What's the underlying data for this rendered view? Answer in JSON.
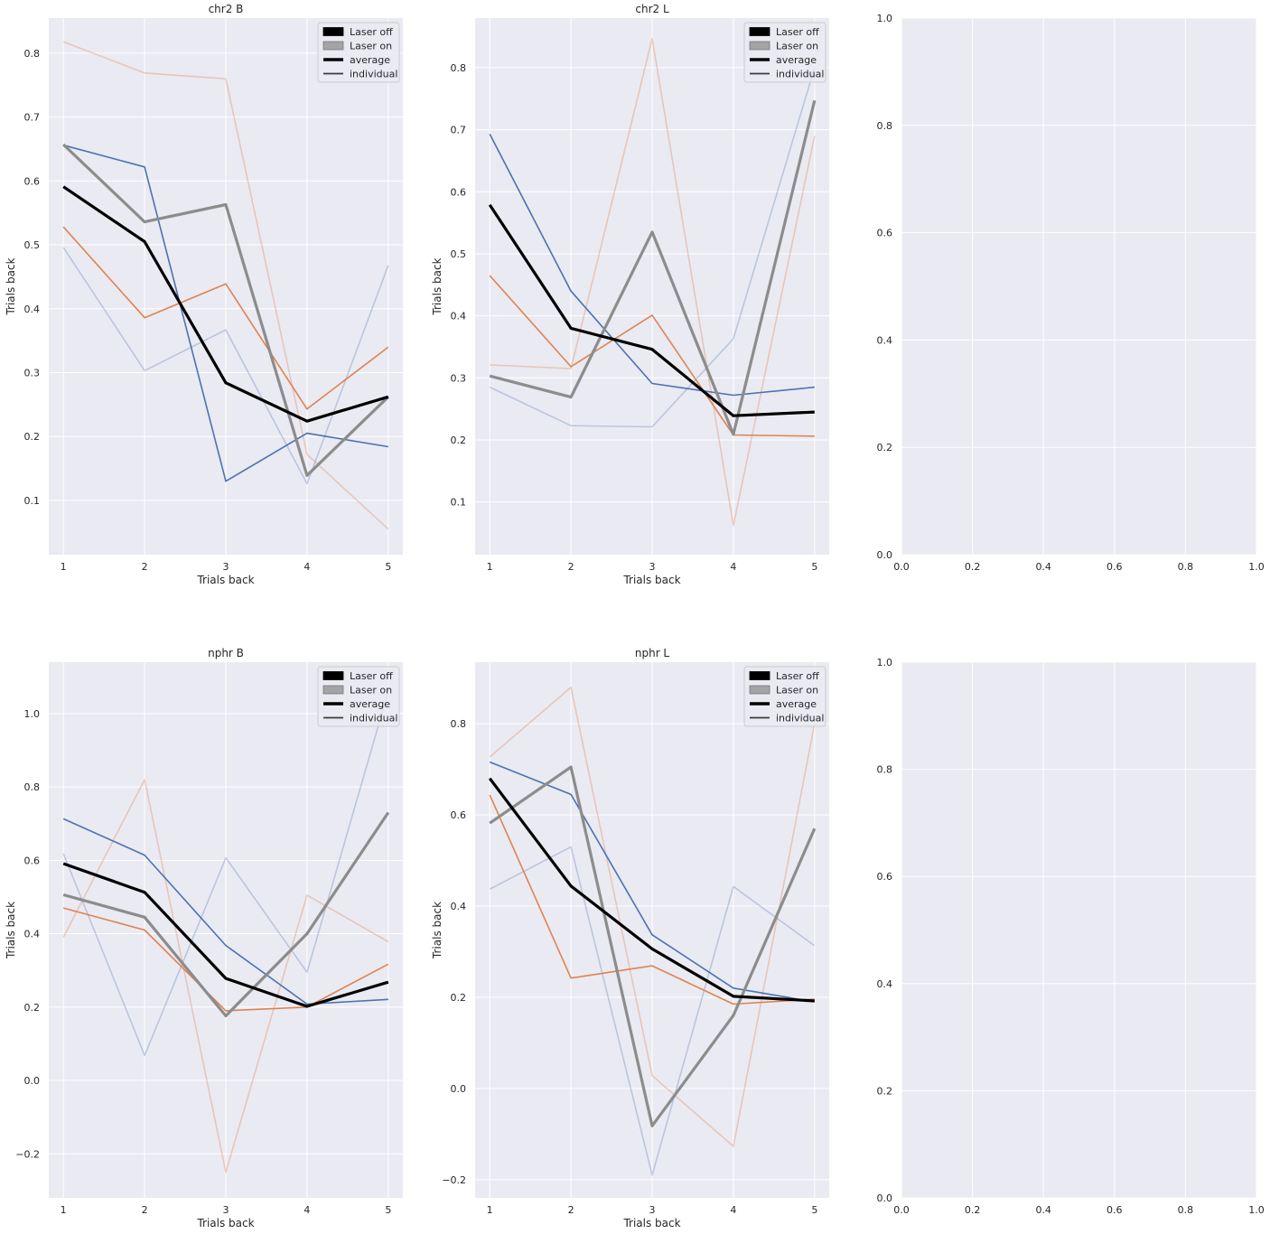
{
  "figure": {
    "background": "#ffffff",
    "axes_face": "#eaeaf2",
    "grid_color": "#ffffff"
  },
  "legend_labels": {
    "laser_off": "Laser off",
    "laser_on": "Laser on",
    "average": "average",
    "individual": "individual"
  },
  "chart_data": [
    {
      "type": "line",
      "title": "chr2 B",
      "xlabel": "Trials back",
      "ylabel": "Trials back",
      "x": [
        1,
        2,
        3,
        4,
        5
      ],
      "xlim": [
        0.82,
        5.18
      ],
      "ylim": [
        0.015,
        0.855
      ],
      "xticks": [
        1,
        2,
        3,
        4,
        5
      ],
      "yticks": [
        0.1,
        0.2,
        0.3,
        0.4,
        0.5,
        0.6,
        0.7,
        0.8
      ],
      "legend": "top-right",
      "grid": true,
      "series": [
        {
          "style": "light-orange",
          "values": [
            0.818,
            0.769,
            0.76,
            0.172,
            0.055
          ]
        },
        {
          "style": "light-blue",
          "values": [
            0.496,
            0.303,
            0.367,
            0.126,
            0.468
          ]
        },
        {
          "style": "orange",
          "values": [
            0.528,
            0.386,
            0.439,
            0.243,
            0.34
          ]
        },
        {
          "style": "blue",
          "values": [
            0.656,
            0.622,
            0.13,
            0.205,
            0.184
          ]
        },
        {
          "style": "laser-on",
          "values": [
            0.657,
            0.536,
            0.563,
            0.139,
            0.262
          ]
        },
        {
          "style": "laser-off",
          "values": [
            0.591,
            0.505,
            0.284,
            0.224,
            0.262
          ]
        }
      ]
    },
    {
      "type": "line",
      "title": "chr2 L",
      "xlabel": "Trials back",
      "ylabel": "Trials back",
      "x": [
        1,
        2,
        3,
        4,
        5
      ],
      "xlim": [
        0.82,
        5.18
      ],
      "ylim": [
        0.015,
        0.88
      ],
      "xticks": [
        1,
        2,
        3,
        4,
        5
      ],
      "yticks": [
        0.1,
        0.2,
        0.3,
        0.4,
        0.5,
        0.6,
        0.7,
        0.8
      ],
      "legend": "top-right",
      "grid": true,
      "series": [
        {
          "style": "light-orange",
          "values": [
            0.321,
            0.315,
            0.847,
            0.062,
            0.69
          ]
        },
        {
          "style": "light-blue",
          "values": [
            0.285,
            0.223,
            0.221,
            0.363,
            0.8
          ]
        },
        {
          "style": "orange",
          "values": [
            0.465,
            0.318,
            0.401,
            0.208,
            0.206
          ]
        },
        {
          "style": "blue",
          "values": [
            0.693,
            0.44,
            0.291,
            0.272,
            0.285
          ]
        },
        {
          "style": "laser-on",
          "values": [
            0.303,
            0.269,
            0.535,
            0.209,
            0.747
          ]
        },
        {
          "style": "laser-off",
          "values": [
            0.579,
            0.38,
            0.346,
            0.239,
            0.245
          ]
        }
      ]
    },
    {
      "type": "line",
      "title": "",
      "xlabel": "",
      "ylabel": "",
      "x": [],
      "xlim": [
        0.0,
        1.0
      ],
      "ylim": [
        0.0,
        1.0
      ],
      "xticks": [
        0.0,
        0.2,
        0.4,
        0.6,
        0.8,
        1.0
      ],
      "yticks": [
        0.0,
        0.2,
        0.4,
        0.6,
        0.8,
        1.0
      ],
      "grid": true,
      "series": []
    },
    {
      "type": "line",
      "title": "nphr B",
      "xlabel": "Trials back",
      "ylabel": "Trials back",
      "x": [
        1,
        2,
        3,
        4,
        5
      ],
      "xlim": [
        0.82,
        5.18
      ],
      "ylim": [
        -0.32,
        1.14
      ],
      "xticks": [
        1,
        2,
        3,
        4,
        5
      ],
      "yticks": [
        -0.2,
        0.0,
        0.2,
        0.4,
        0.6,
        0.8,
        1.0
      ],
      "legend": "top-right",
      "grid": true,
      "series": [
        {
          "style": "light-orange",
          "values": [
            0.39,
            0.82,
            -0.25,
            0.505,
            0.378
          ]
        },
        {
          "style": "light-blue",
          "values": [
            0.618,
            0.068,
            0.607,
            0.295,
            1.06
          ]
        },
        {
          "style": "orange",
          "values": [
            0.47,
            0.41,
            0.19,
            0.2,
            0.317
          ]
        },
        {
          "style": "blue",
          "values": [
            0.713,
            0.614,
            0.368,
            0.208,
            0.221
          ]
        },
        {
          "style": "laser-on",
          "values": [
            0.506,
            0.445,
            0.176,
            0.4,
            0.73
          ]
        },
        {
          "style": "laser-off",
          "values": [
            0.591,
            0.513,
            0.278,
            0.202,
            0.268
          ]
        }
      ]
    },
    {
      "type": "line",
      "title": "nphr L",
      "xlabel": "Trials back",
      "ylabel": "Trials back",
      "x": [
        1,
        2,
        3,
        4,
        5
      ],
      "xlim": [
        0.82,
        5.18
      ],
      "ylim": [
        -0.24,
        0.935
      ],
      "xticks": [
        1,
        2,
        3,
        4,
        5
      ],
      "yticks": [
        -0.2,
        0.0,
        0.2,
        0.4,
        0.6,
        0.8
      ],
      "legend": "top-right",
      "grid": true,
      "series": [
        {
          "style": "light-orange",
          "values": [
            0.727,
            0.88,
            0.028,
            -0.127,
            0.8
          ]
        },
        {
          "style": "light-blue",
          "values": [
            0.437,
            0.53,
            -0.19,
            0.443,
            0.313
          ]
        },
        {
          "style": "orange",
          "values": [
            0.644,
            0.242,
            0.269,
            0.185,
            0.196
          ]
        },
        {
          "style": "blue",
          "values": [
            0.716,
            0.645,
            0.337,
            0.22,
            0.19
          ]
        },
        {
          "style": "laser-on",
          "values": [
            0.582,
            0.705,
            -0.082,
            0.16,
            0.57
          ]
        },
        {
          "style": "laser-off",
          "values": [
            0.68,
            0.444,
            0.306,
            0.202,
            0.192
          ]
        }
      ]
    },
    {
      "type": "line",
      "title": "",
      "xlabel": "",
      "ylabel": "",
      "x": [],
      "xlim": [
        0.0,
        1.0
      ],
      "ylim": [
        0.0,
        1.0
      ],
      "xticks": [
        0.0,
        0.2,
        0.4,
        0.6,
        0.8,
        1.0
      ],
      "yticks": [
        0.0,
        0.2,
        0.4,
        0.6,
        0.8,
        1.0
      ],
      "grid": true,
      "series": []
    }
  ]
}
